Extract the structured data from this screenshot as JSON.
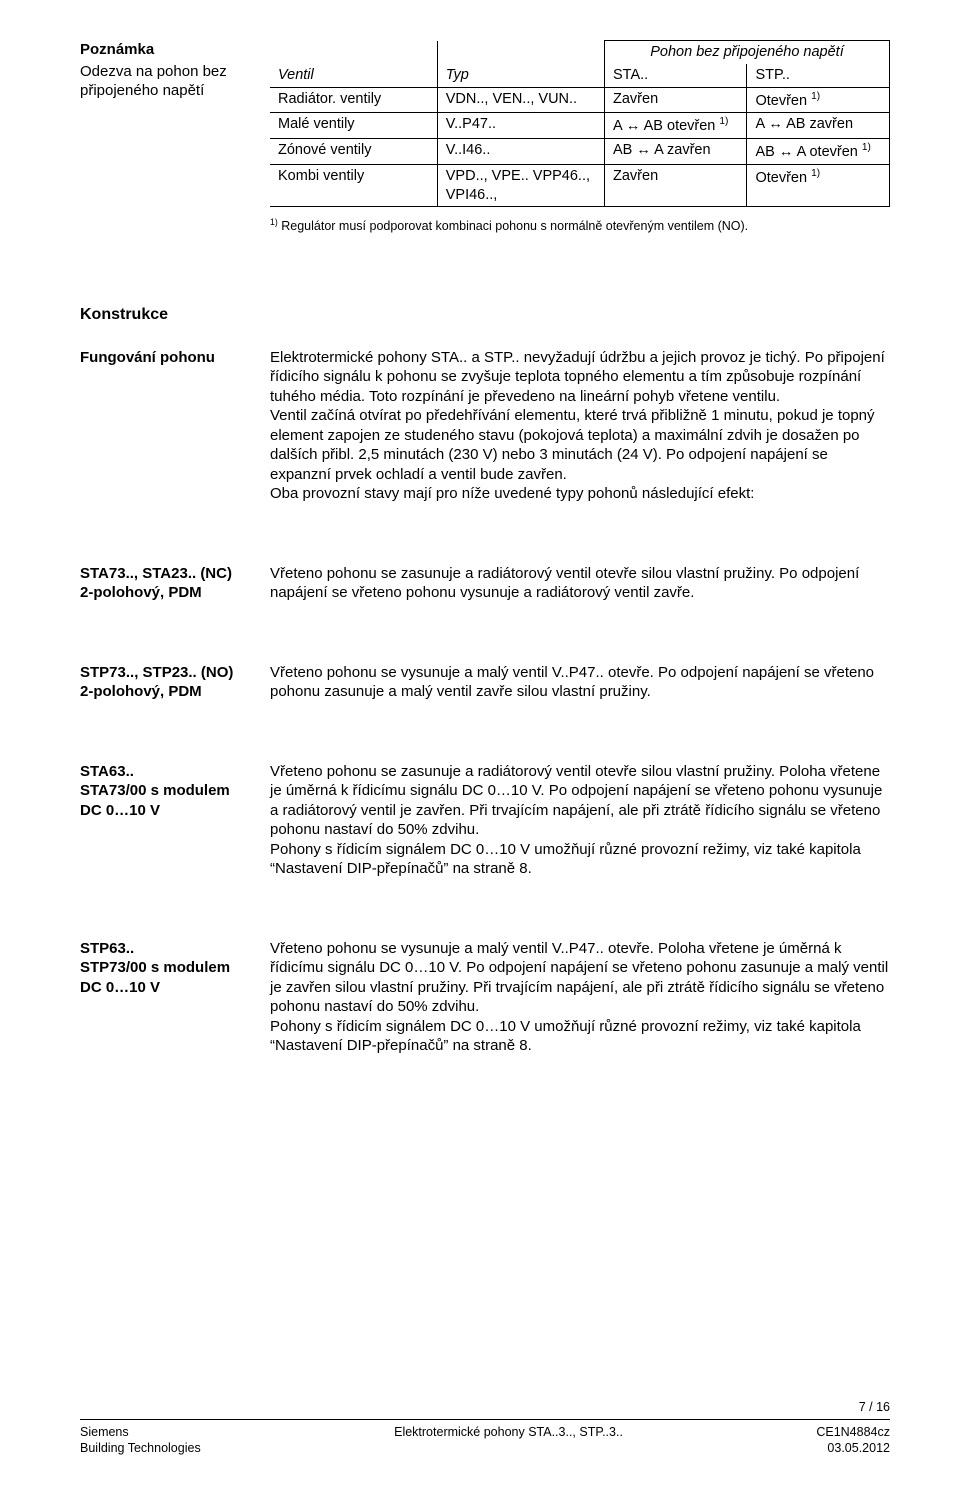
{
  "note": {
    "title": "Poznámka",
    "body": "Odezva na pohon bez připojeného napětí"
  },
  "table": {
    "span_header": "Pohon bez připojeného napětí",
    "col_ventil": "Ventil",
    "col_typ": "Typ",
    "col_sta": "STA..",
    "col_stp": "STP..",
    "rows": [
      {
        "ventil": "Radiátor. ventily",
        "typ": "VDN.., VEN.., VUN..",
        "sta": "Zavřen",
        "stp": "Otevřen 1)"
      },
      {
        "ventil": "Malé ventily",
        "typ": "V..P47..",
        "sta": "A ↔ AB otevřen 1)",
        "stp": "A ↔ AB zavřen"
      },
      {
        "ventil": "Zónové ventily",
        "typ": "V..I46..",
        "sta": "AB ↔ A zavřen",
        "stp": "AB ↔ A otevřen 1)"
      },
      {
        "ventil": "Kombi ventily",
        "typ": "VPD.., VPE.. VPP46.., VPI46..,",
        "sta": "Zavřen",
        "stp": "Otevřen 1)"
      }
    ],
    "footnote": "1) Regulátor musí podporovat kombinaci pohonu s normálně otevřeným ventilem (NO)."
  },
  "konstrukce_heading": "Konstrukce",
  "blocks": [
    {
      "label": "Fungování pohonu",
      "body": "Elektrotermické pohony STA.. a STP.. nevyžadují údržbu a jejich provoz je tichý. Po připojení řídicího signálu k pohonu se zvyšuje teplota topného elementu a tím způsobuje rozpínání tuhého média. Toto rozpínání je převedeno na lineární pohyb vřetene ventilu.\nVentil začíná otvírat po předehřívání elementu, které trvá přibližně 1 minutu, pokud je topný element zapojen ze studeného stavu (pokojová teplota) a maximální zdvih je dosažen po dalších přibl. 2,5 minutách (230 V) nebo 3 minutách (24 V). Po odpojení napájení se expanzní prvek ochladí a ventil bude zavřen.\nOba provozní stavy mají pro níže uvedené typy pohonů následující efekt:"
    },
    {
      "label": "STA73.., STA23.. (NC)\n2-polohový, PDM",
      "body": "Vřeteno pohonu se zasunuje a radiátorový ventil otevře silou vlastní pružiny. Po odpojení napájení se vřeteno pohonu vysunuje a radiátorový ventil zavře."
    },
    {
      "label": "STP73.., STP23.. (NO)\n2-polohový, PDM",
      "body": "Vřeteno pohonu se vysunuje a malý ventil V..P47.. otevře. Po odpojení napájení se vřeteno pohonu zasunuje a malý ventil zavře silou vlastní pružiny."
    },
    {
      "label": "STA63..\nSTA73/00 s modulem\nDC 0…10 V",
      "body": "Vřeteno pohonu se zasunuje a radiátorový ventil otevře silou vlastní pružiny. Poloha vřetene je úměrná k řídicímu signálu DC 0…10 V. Po odpojení napájení se vřeteno pohonu vysunuje a radiátorový ventil je zavřen. Při trvajícím napájení, ale při ztrátě řídicího signálu se vřeteno pohonu nastaví do 50% zdvihu.\nPohony s řídicím signálem DC 0…10 V umožňují různé provozní režimy, viz také kapitola “Nastavení DIP-přepínačů” na straně 8."
    },
    {
      "label": "STP63..\nSTP73/00 s modulem\nDC 0…10 V",
      "body": "Vřeteno pohonu se vysunuje a malý ventil V..P47.. otevře. Poloha vřetene je úměrná k řídicímu signálu DC 0…10 V. Po odpojení napájení se vřeteno pohonu zasunuje a malý ventil je zavřen silou vlastní pružiny. Při trvajícím napájení, ale při ztrátě řídicího signálu se vřeteno pohonu nastaví do 50% zdvihu.\nPohony s řídicím signálem DC 0…10 V umožňují různé provozní režimy, viz také kapitola “Nastavení DIP-přepínačů” na straně 8."
    }
  ],
  "footer": {
    "page": "7 / 16",
    "left1": "Siemens",
    "left2": "Building Technologies",
    "center": "Elektrotermické pohony STA..3.., STP..3..",
    "right1": "CE1N4884cz",
    "right2": "03.05.2012"
  }
}
